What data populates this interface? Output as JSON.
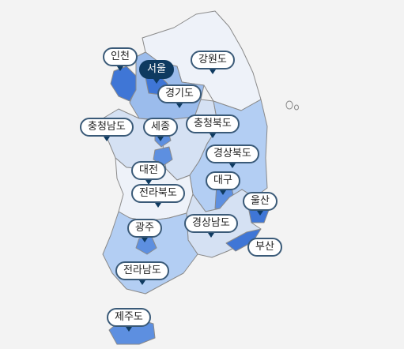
{
  "map": {
    "colors": {
      "level0": "#eef2f9",
      "level1": "#d5e1f3",
      "level2": "#b3cef3",
      "level3": "#9bbcec",
      "level4": "#5d8fe0",
      "level5": "#3f76d6",
      "selected": "#0e3a60",
      "outline": "#8a8a8a"
    },
    "regions": [
      {
        "key": "incheon",
        "name": "인천",
        "level": 5
      },
      {
        "key": "seoul",
        "name": "서울",
        "level": 5,
        "selected": true
      },
      {
        "key": "gangwon",
        "name": "강원도",
        "level": 0
      },
      {
        "key": "gyeonggi",
        "name": "경기도",
        "level": 3
      },
      {
        "key": "chungnam",
        "name": "충청남도",
        "level": 1
      },
      {
        "key": "sejong",
        "name": "세종",
        "level": 4
      },
      {
        "key": "chungbuk",
        "name": "충청북도",
        "level": 1
      },
      {
        "key": "daejeon",
        "name": "대전",
        "level": 4
      },
      {
        "key": "gyeongbuk",
        "name": "경상북도",
        "level": 2
      },
      {
        "key": "daegu",
        "name": "대구",
        "level": 4
      },
      {
        "key": "jeonbuk",
        "name": "전라북도",
        "level": 0
      },
      {
        "key": "ulsan",
        "name": "울산",
        "level": 5
      },
      {
        "key": "gwangju",
        "name": "광주",
        "level": 4
      },
      {
        "key": "gyeongnam",
        "name": "경상남도",
        "level": 1
      },
      {
        "key": "busan",
        "name": "부산",
        "level": 5
      },
      {
        "key": "jeonnam",
        "name": "전라남도",
        "level": 2
      },
      {
        "key": "jeju",
        "name": "제주도",
        "level": 4
      }
    ]
  }
}
